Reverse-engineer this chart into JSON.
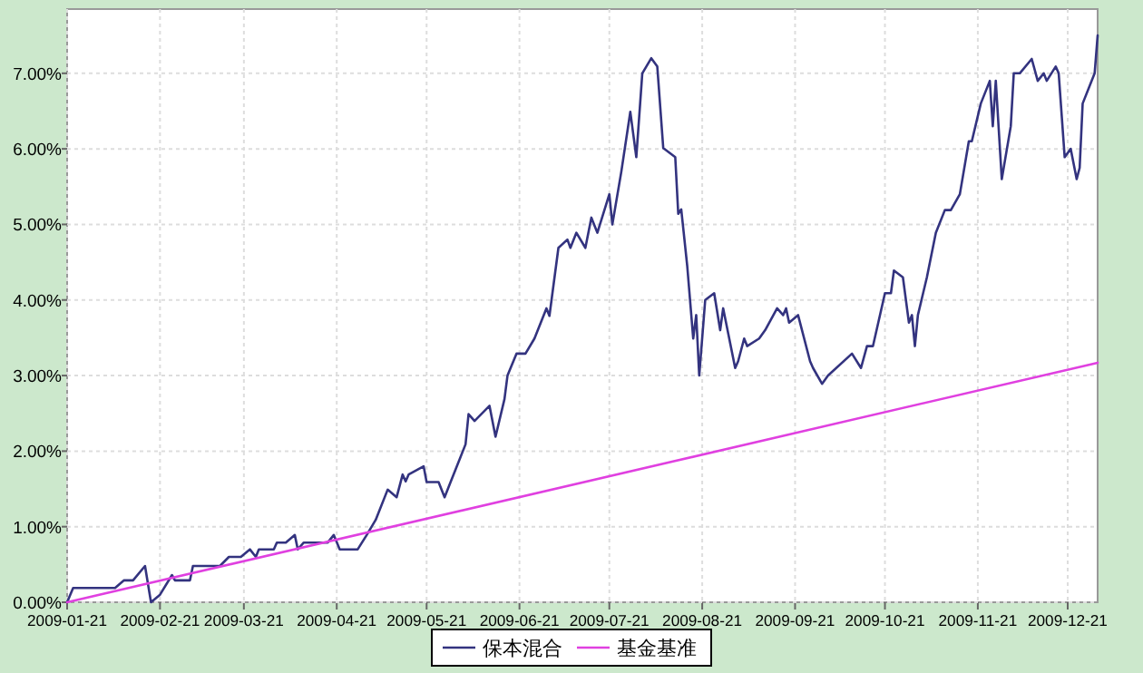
{
  "chart_data": {
    "type": "line",
    "x": [
      "2009-01-21",
      "2009-01-23",
      "2009-02-06",
      "2009-02-09",
      "2009-02-12",
      "2009-02-16",
      "2009-02-18",
      "2009-02-21",
      "2009-02-25",
      "2009-02-26",
      "2009-03-03",
      "2009-03-04",
      "2009-03-13",
      "2009-03-16",
      "2009-03-20",
      "2009-03-23",
      "2009-03-25",
      "2009-03-26",
      "2009-03-31",
      "2009-04-01",
      "2009-04-04",
      "2009-04-07",
      "2009-04-08",
      "2009-04-10",
      "2009-04-18",
      "2009-04-20",
      "2009-04-22",
      "2009-04-28",
      "2009-05-01",
      "2009-05-04",
      "2009-05-08",
      "2009-05-11",
      "2009-05-13",
      "2009-05-14",
      "2009-05-15",
      "2009-05-20",
      "2009-05-21",
      "2009-05-25",
      "2009-05-27",
      "2009-05-29",
      "2009-06-03",
      "2009-06-04",
      "2009-06-06",
      "2009-06-11",
      "2009-06-13",
      "2009-06-16",
      "2009-06-17",
      "2009-06-20",
      "2009-06-23",
      "2009-06-26",
      "2009-06-30",
      "2009-07-01",
      "2009-07-04",
      "2009-07-07",
      "2009-07-08",
      "2009-07-10",
      "2009-07-13",
      "2009-07-15",
      "2009-07-17",
      "2009-07-21",
      "2009-07-22",
      "2009-07-25",
      "2009-07-28",
      "2009-07-30",
      "2009-08-01",
      "2009-08-04",
      "2009-08-06",
      "2009-08-08",
      "2009-08-12",
      "2009-08-13",
      "2009-08-14",
      "2009-08-16",
      "2009-08-18",
      "2009-08-19",
      "2009-08-20",
      "2009-08-22",
      "2009-08-25",
      "2009-08-27",
      "2009-08-28",
      "2009-09-01",
      "2009-09-02",
      "2009-09-04",
      "2009-09-05",
      "2009-09-09",
      "2009-09-11",
      "2009-09-15",
      "2009-09-17",
      "2009-09-18",
      "2009-09-19",
      "2009-09-22",
      "2009-09-26",
      "2009-09-27",
      "2009-09-30",
      "2009-10-02",
      "2009-10-10",
      "2009-10-13",
      "2009-10-15",
      "2009-10-17",
      "2009-10-21",
      "2009-10-23",
      "2009-10-24",
      "2009-10-27",
      "2009-10-29",
      "2009-10-30",
      "2009-10-31",
      "2009-11-01",
      "2009-11-04",
      "2009-11-07",
      "2009-11-10",
      "2009-11-12",
      "2009-11-15",
      "2009-11-18",
      "2009-11-19",
      "2009-11-22",
      "2009-11-25",
      "2009-11-26",
      "2009-11-27",
      "2009-11-29",
      "2009-12-02",
      "2009-12-03",
      "2009-12-05",
      "2009-12-09",
      "2009-12-11",
      "2009-12-13",
      "2009-12-14",
      "2009-12-17",
      "2009-12-18",
      "2009-12-20",
      "2009-12-22",
      "2009-12-24",
      "2009-12-25",
      "2009-12-26",
      "2009-12-30",
      "2009-12-31"
    ],
    "series": [
      {
        "name": "保本混合",
        "color": "#33337f",
        "values": [
          0,
          0.19,
          0.19,
          0.29,
          0.29,
          0.48,
          0.0,
          0.1,
          0.36,
          0.29,
          0.29,
          0.48,
          0.48,
          0.6,
          0.6,
          0.7,
          0.6,
          0.7,
          0.7,
          0.79,
          0.79,
          0.89,
          0.7,
          0.79,
          0.79,
          0.89,
          0.7,
          0.7,
          0.89,
          1.09,
          1.49,
          1.39,
          1.69,
          1.6,
          1.69,
          1.8,
          1.59,
          1.59,
          1.39,
          1.59,
          2.09,
          2.49,
          2.4,
          2.6,
          2.19,
          2.69,
          3.0,
          3.29,
          3.29,
          3.49,
          3.89,
          3.79,
          4.69,
          4.8,
          4.69,
          4.89,
          4.69,
          5.09,
          4.89,
          5.4,
          5.0,
          5.7,
          6.49,
          5.89,
          7.0,
          7.2,
          7.09,
          6.01,
          5.89,
          5.14,
          5.2,
          4.45,
          3.49,
          3.8,
          3.0,
          4.0,
          4.09,
          3.6,
          3.89,
          3.1,
          3.19,
          3.49,
          3.39,
          3.49,
          3.6,
          3.89,
          3.8,
          3.89,
          3.7,
          3.8,
          3.19,
          3.1,
          2.89,
          3.0,
          3.29,
          3.1,
          3.39,
          3.39,
          4.09,
          4.09,
          4.39,
          4.3,
          3.7,
          3.8,
          3.39,
          3.8,
          4.3,
          4.89,
          5.19,
          5.19,
          5.4,
          6.1,
          6.1,
          6.6,
          6.9,
          6.3,
          6.9,
          5.6,
          6.3,
          7.0,
          7.0,
          7.19,
          6.9,
          7.0,
          6.9,
          7.09,
          7.0,
          5.89,
          6.0,
          5.6,
          5.75,
          6.6,
          7.0,
          7.5
        ]
      },
      {
        "name": "基金基准",
        "color": "#e040e0",
        "x": [
          "2009-01-21",
          "2009-12-31"
        ],
        "values": [
          0,
          3.17
        ]
      }
    ],
    "xlim": [
      "2009-01-21",
      "2009-12-31"
    ],
    "xticks": [
      "2009-01-21",
      "2009-02-21",
      "2009-03-21",
      "2009-04-21",
      "2009-05-21",
      "2009-06-21",
      "2009-07-21",
      "2009-08-21",
      "2009-09-21",
      "2009-10-21",
      "2009-11-21",
      "2009-12-21"
    ],
    "ylim": [
      0,
      7.85
    ],
    "yticks": [
      {
        "value": 0,
        "label": "0.00%"
      },
      {
        "value": 1,
        "label": "1.00%"
      },
      {
        "value": 2,
        "label": "2.00%"
      },
      {
        "value": 3,
        "label": "3.00%"
      },
      {
        "value": 4,
        "label": "4.00%"
      },
      {
        "value": 5,
        "label": "5.00%"
      },
      {
        "value": 6,
        "label": "6.00%"
      },
      {
        "value": 7,
        "label": "7.00%"
      }
    ],
    "grid": true,
    "legend": "bottom",
    "line_style": "solid",
    "marker": "none"
  }
}
